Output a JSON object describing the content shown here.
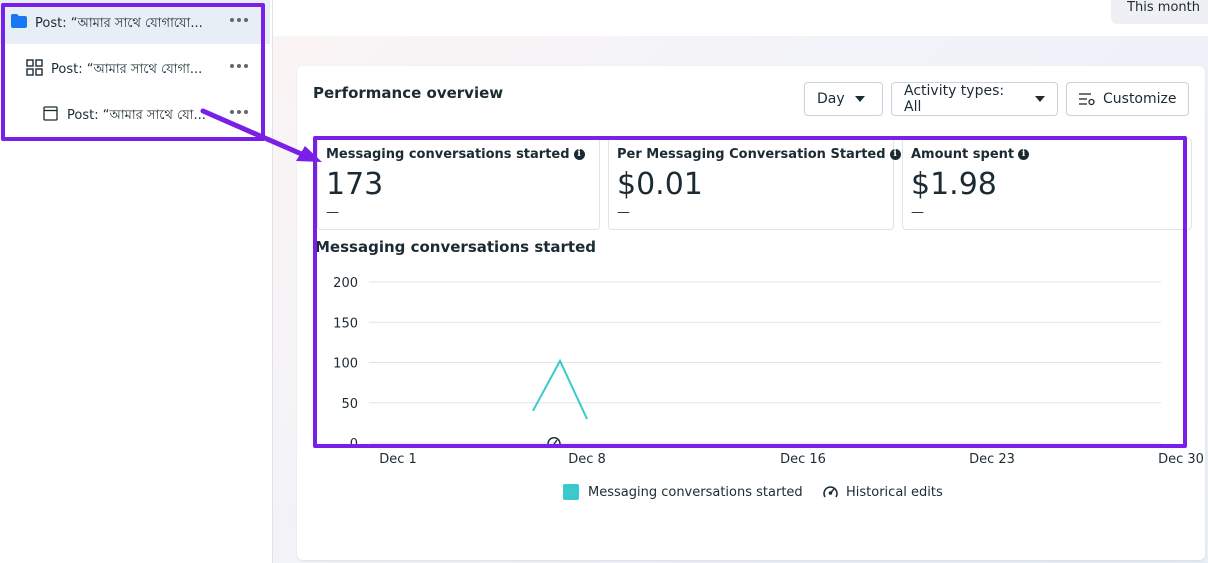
{
  "sidebar": {
    "items": [
      {
        "label": "Post: “আমার সাথে যোগাযো...",
        "icon": "folder-icon",
        "selected": true
      },
      {
        "label": "Post: “আমার সাথে যোগা...",
        "icon": "grid-icon",
        "selected": false
      },
      {
        "label": "Post: “আমার সাথে যো...",
        "icon": "ad-icon",
        "selected": false
      }
    ]
  },
  "header": {
    "date_range": "This month"
  },
  "performance": {
    "title": "Performance overview",
    "controls": {
      "day": "Day",
      "activity": "Activity types: All",
      "customize": "Customize"
    },
    "metrics": [
      {
        "label": "Messaging conversations started",
        "value": "173",
        "change": "—"
      },
      {
        "label": "Per Messaging Conversation Started",
        "value": "$0.01",
        "change": "—"
      },
      {
        "label": "Amount spent",
        "value": "$1.98",
        "change": "—"
      }
    ]
  },
  "chart_data": {
    "type": "line",
    "title": "Messaging conversations started",
    "xlabel": "",
    "ylabel": "",
    "x_tick_labels": [
      "Dec 1",
      "Dec 8",
      "Dec 16",
      "Dec 23",
      "Dec 30"
    ],
    "y_tick_labels": [
      "0",
      "50",
      "100",
      "150",
      "200"
    ],
    "ylim": [
      0,
      200
    ],
    "grid": true,
    "legend_position": "bottom",
    "series": [
      {
        "name": "Messaging conversations started",
        "color": "#3bc9cc",
        "points": [
          {
            "x": "Dec 6",
            "y": 40
          },
          {
            "x": "Dec 7",
            "y": 102
          },
          {
            "x": "Dec 8",
            "y": 30
          }
        ]
      }
    ],
    "legend": [
      "Messaging conversations started",
      "Historical edits"
    ]
  },
  "colors": {
    "accent": "#7a1fe8",
    "series": "#3bc9cc",
    "selected_row": "#e8eef6"
  }
}
